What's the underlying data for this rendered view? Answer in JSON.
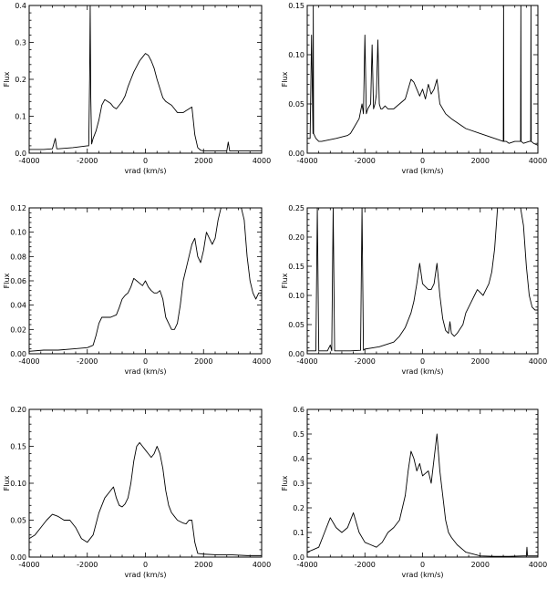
{
  "chart_data": [
    {
      "type": "line",
      "xlabel": "vrad (km/s)",
      "ylabel": "Flux",
      "xlim": [
        -4000,
        4000
      ],
      "ylim": [
        0,
        0.4
      ],
      "xticks": [
        -4000,
        -2000,
        0,
        2000,
        4000
      ],
      "yticks": [
        0.0,
        0.1,
        0.2,
        0.3,
        0.4
      ],
      "ytick_labels": [
        "0.0",
        "0.1",
        "0.2",
        "0.3",
        "0.4"
      ],
      "series": [
        {
          "x": [
            -4000,
            -3500,
            -3200,
            -3100,
            -3050,
            -3000,
            -2500,
            -2000,
            -1950,
            -1920,
            -1900,
            -1880,
            -1850,
            -1800,
            -1700,
            -1600,
            -1500,
            -1400,
            -1300,
            -1200,
            -1100,
            -1000,
            -900,
            -800,
            -700,
            -600,
            -500,
            -400,
            -300,
            -200,
            -100,
            0,
            100,
            200,
            300,
            400,
            500,
            600,
            700,
            800,
            900,
            1000,
            1100,
            1200,
            1300,
            1400,
            1500,
            1600,
            1700,
            1800,
            1900,
            2000,
            2500,
            2800,
            2850,
            2900,
            3000,
            3500,
            4000
          ],
          "y": [
            0.01,
            0.01,
            0.012,
            0.04,
            0.012,
            0.012,
            0.015,
            0.02,
            0.02,
            0.2,
            0.4,
            0.15,
            0.025,
            0.04,
            0.06,
            0.09,
            0.13,
            0.145,
            0.14,
            0.135,
            0.125,
            0.12,
            0.13,
            0.14,
            0.155,
            0.18,
            0.2,
            0.22,
            0.235,
            0.25,
            0.26,
            0.27,
            0.265,
            0.25,
            0.23,
            0.2,
            0.175,
            0.15,
            0.14,
            0.135,
            0.13,
            0.12,
            0.11,
            0.11,
            0.11,
            0.115,
            0.12,
            0.125,
            0.05,
            0.015,
            0.008,
            0.006,
            0.006,
            0.006,
            0.03,
            0.006,
            0.006,
            0.006,
            0.006
          ]
        }
      ]
    },
    {
      "type": "line",
      "xlabel": "vrad (km/s)",
      "ylabel": "Flux",
      "xlim": [
        -4000,
        4000
      ],
      "ylim": [
        0,
        0.15
      ],
      "xticks": [
        -4000,
        -2000,
        0,
        2000,
        4000
      ],
      "yticks": [
        0.0,
        0.05,
        0.1,
        0.15
      ],
      "ytick_labels": [
        "0.00",
        "0.05",
        "0.10",
        "0.15"
      ],
      "series": [
        {
          "x": [
            -4000,
            -3900,
            -3850,
            -3800,
            -3790,
            -3780,
            -3700,
            -3600,
            -3500,
            -3000,
            -2600,
            -2500,
            -2400,
            -2200,
            -2100,
            -2050,
            -2000,
            -1950,
            -1900,
            -1800,
            -1750,
            -1700,
            -1650,
            -1600,
            -1550,
            -1500,
            -1450,
            -1400,
            -1300,
            -1200,
            -1000,
            -800,
            -600,
            -400,
            -300,
            -200,
            -100,
            0,
            100,
            200,
            300,
            400,
            500,
            600,
            800,
            1000,
            1500,
            2000,
            2500,
            2800,
            2810,
            2820,
            2900,
            3000,
            3200,
            3400,
            3410,
            3420,
            3500,
            3700,
            3750,
            3760,
            3770,
            3850,
            4000
          ],
          "y": [
            0.015,
            0.015,
            0.12,
            0.02,
            0.15,
            0.02,
            0.015,
            0.012,
            0.012,
            0.015,
            0.018,
            0.02,
            0.025,
            0.035,
            0.05,
            0.04,
            0.12,
            0.04,
            0.045,
            0.05,
            0.11,
            0.045,
            0.05,
            0.06,
            0.115,
            0.05,
            0.045,
            0.045,
            0.048,
            0.045,
            0.045,
            0.05,
            0.055,
            0.075,
            0.072,
            0.065,
            0.058,
            0.065,
            0.055,
            0.07,
            0.06,
            0.065,
            0.075,
            0.05,
            0.04,
            0.035,
            0.025,
            0.02,
            0.015,
            0.012,
            0.15,
            0.012,
            0.012,
            0.01,
            0.012,
            0.012,
            0.15,
            0.012,
            0.01,
            0.012,
            0.012,
            0.15,
            0.012,
            0.01,
            0.008
          ]
        }
      ]
    },
    {
      "type": "line",
      "xlabel": "vrad (km/s)",
      "ylabel": "Flux",
      "xlim": [
        -4000,
        4000
      ],
      "ylim": [
        0,
        0.12
      ],
      "xticks": [
        -4000,
        -2000,
        0,
        2000,
        4000
      ],
      "yticks": [
        0.0,
        0.02,
        0.04,
        0.06,
        0.08,
        0.1,
        0.12
      ],
      "ytick_labels": [
        "0.00",
        "0.02",
        "0.04",
        "0.06",
        "0.08",
        "0.10",
        "0.12"
      ],
      "series": [
        {
          "x": [
            -4000,
            -3500,
            -3000,
            -2500,
            -2000,
            -1800,
            -1700,
            -1600,
            -1500,
            -1400,
            -1200,
            -1000,
            -900,
            -800,
            -700,
            -600,
            -500,
            -400,
            -300,
            -200,
            -100,
            0,
            100,
            200,
            300,
            400,
            500,
            600,
            700,
            800,
            900,
            1000,
            1100,
            1200,
            1300,
            1400,
            1500,
            1600,
            1700,
            1800,
            1900,
            2000,
            2100,
            2200,
            2300,
            2400,
            2500,
            2600,
            2700,
            2800,
            2900,
            3000,
            3100,
            3200,
            3300,
            3400,
            3500,
            3600,
            3700,
            3800,
            3900,
            4000
          ],
          "y": [
            0.002,
            0.003,
            0.003,
            0.004,
            0.005,
            0.007,
            0.015,
            0.025,
            0.03,
            0.03,
            0.03,
            0.032,
            0.038,
            0.045,
            0.048,
            0.05,
            0.055,
            0.062,
            0.06,
            0.058,
            0.056,
            0.06,
            0.055,
            0.052,
            0.05,
            0.05,
            0.052,
            0.045,
            0.03,
            0.025,
            0.02,
            0.02,
            0.025,
            0.04,
            0.06,
            0.07,
            0.08,
            0.09,
            0.095,
            0.08,
            0.075,
            0.085,
            0.1,
            0.095,
            0.09,
            0.095,
            0.11,
            0.12,
            0.12,
            0.12,
            0.12,
            0.12,
            0.12,
            0.12,
            0.12,
            0.11,
            0.08,
            0.06,
            0.05,
            0.045,
            0.05,
            0.05
          ]
        }
      ]
    },
    {
      "type": "line",
      "xlabel": "vrad (km/s)",
      "ylabel": "Flux",
      "xlim": [
        -4000,
        4000
      ],
      "ylim": [
        0,
        0.25
      ],
      "xticks": [
        -4000,
        -2000,
        0,
        2000,
        4000
      ],
      "yticks": [
        0.0,
        0.05,
        0.1,
        0.15,
        0.2,
        0.25
      ],
      "ytick_labels": [
        "0.00",
        "0.05",
        "0.10",
        "0.15",
        "0.20",
        "0.25"
      ],
      "series": [
        {
          "x": [
            -4000,
            -3800,
            -3700,
            -3650,
            -3600,
            -3450,
            -3300,
            -3200,
            -3150,
            -3100,
            -3050,
            -3000,
            -2500,
            -2150,
            -2100,
            -2050,
            -2000,
            -1500,
            -1000,
            -800,
            -600,
            -400,
            -300,
            -200,
            -100,
            0,
            100,
            200,
            300,
            400,
            500,
            600,
            700,
            800,
            900,
            950,
            1000,
            1100,
            1200,
            1400,
            1500,
            1600,
            1700,
            1800,
            1900,
            2000,
            2100,
            2200,
            2300,
            2400,
            2500,
            2600,
            2700,
            2800,
            2900,
            3000,
            3100,
            3200,
            3300,
            3400,
            3500,
            3600,
            3700,
            3800,
            3900,
            4000
          ],
          "y": [
            0.005,
            0.005,
            0.005,
            0.25,
            0.005,
            0.005,
            0.005,
            0.015,
            0.005,
            0.25,
            0.005,
            0.005,
            0.005,
            0.006,
            0.25,
            0.006,
            0.008,
            0.012,
            0.02,
            0.03,
            0.045,
            0.07,
            0.09,
            0.12,
            0.155,
            0.12,
            0.115,
            0.11,
            0.11,
            0.12,
            0.155,
            0.1,
            0.06,
            0.04,
            0.035,
            0.055,
            0.035,
            0.03,
            0.035,
            0.05,
            0.07,
            0.08,
            0.09,
            0.1,
            0.11,
            0.105,
            0.1,
            0.11,
            0.12,
            0.14,
            0.18,
            0.25,
            0.25,
            0.25,
            0.25,
            0.25,
            0.25,
            0.25,
            0.25,
            0.25,
            0.22,
            0.15,
            0.1,
            0.08,
            0.075,
            0.075
          ]
        }
      ]
    },
    {
      "type": "line",
      "xlabel": "vrad (km/s)",
      "ylabel": "Flux",
      "xlim": [
        -4000,
        4000
      ],
      "ylim": [
        0,
        0.2
      ],
      "xticks": [
        -4000,
        -2000,
        0,
        2000,
        4000
      ],
      "yticks": [
        0.0,
        0.05,
        0.1,
        0.15,
        0.2
      ],
      "ytick_labels": [
        "0.00",
        "0.05",
        "0.10",
        "0.15",
        "0.20"
      ],
      "series": [
        {
          "x": [
            -4000,
            -3800,
            -3600,
            -3400,
            -3200,
            -3000,
            -2800,
            -2600,
            -2400,
            -2200,
            -2000,
            -1800,
            -1600,
            -1400,
            -1200,
            -1100,
            -1000,
            -900,
            -800,
            -700,
            -600,
            -500,
            -400,
            -300,
            -200,
            -100,
            0,
            100,
            200,
            300,
            400,
            500,
            600,
            700,
            800,
            900,
            1000,
            1100,
            1200,
            1300,
            1400,
            1500,
            1600,
            1700,
            1800,
            2000,
            2500,
            3000,
            3500,
            4000
          ],
          "y": [
            0.025,
            0.03,
            0.04,
            0.05,
            0.058,
            0.055,
            0.05,
            0.05,
            0.04,
            0.025,
            0.02,
            0.03,
            0.06,
            0.08,
            0.09,
            0.095,
            0.08,
            0.07,
            0.068,
            0.072,
            0.08,
            0.1,
            0.13,
            0.15,
            0.155,
            0.15,
            0.145,
            0.14,
            0.135,
            0.14,
            0.15,
            0.14,
            0.12,
            0.09,
            0.07,
            0.06,
            0.055,
            0.05,
            0.048,
            0.046,
            0.045,
            0.05,
            0.05,
            0.02,
            0.005,
            0.004,
            0.003,
            0.003,
            0.002,
            0.002
          ]
        }
      ]
    },
    {
      "type": "line",
      "xlabel": "vrad (km/s)",
      "ylabel": "Flux",
      "xlim": [
        -4000,
        4000
      ],
      "ylim": [
        0,
        0.6
      ],
      "xticks": [
        -4000,
        -2000,
        0,
        2000,
        4000
      ],
      "yticks": [
        0.0,
        0.1,
        0.2,
        0.3,
        0.4,
        0.5,
        0.6
      ],
      "ytick_labels": [
        "0.0",
        "0.1",
        "0.2",
        "0.3",
        "0.4",
        "0.5",
        "0.6"
      ],
      "series": [
        {
          "x": [
            -4000,
            -3800,
            -3600,
            -3400,
            -3200,
            -3000,
            -2800,
            -2600,
            -2400,
            -2200,
            -2000,
            -1800,
            -1600,
            -1400,
            -1200,
            -1000,
            -800,
            -600,
            -500,
            -400,
            -300,
            -200,
            -100,
            0,
            100,
            200,
            300,
            400,
            500,
            600,
            700,
            800,
            900,
            1000,
            1200,
            1500,
            2000,
            2500,
            3000,
            3500,
            3600,
            3620,
            3640,
            3700,
            4000
          ],
          "y": [
            0.02,
            0.03,
            0.04,
            0.1,
            0.16,
            0.12,
            0.1,
            0.12,
            0.18,
            0.1,
            0.06,
            0.05,
            0.04,
            0.06,
            0.1,
            0.12,
            0.15,
            0.25,
            0.35,
            0.43,
            0.4,
            0.35,
            0.38,
            0.33,
            0.34,
            0.35,
            0.3,
            0.4,
            0.5,
            0.35,
            0.25,
            0.15,
            0.1,
            0.08,
            0.05,
            0.02,
            0.005,
            0.003,
            0.003,
            0.005,
            0.005,
            0.04,
            0.005,
            0.005,
            0.005
          ]
        }
      ]
    }
  ]
}
